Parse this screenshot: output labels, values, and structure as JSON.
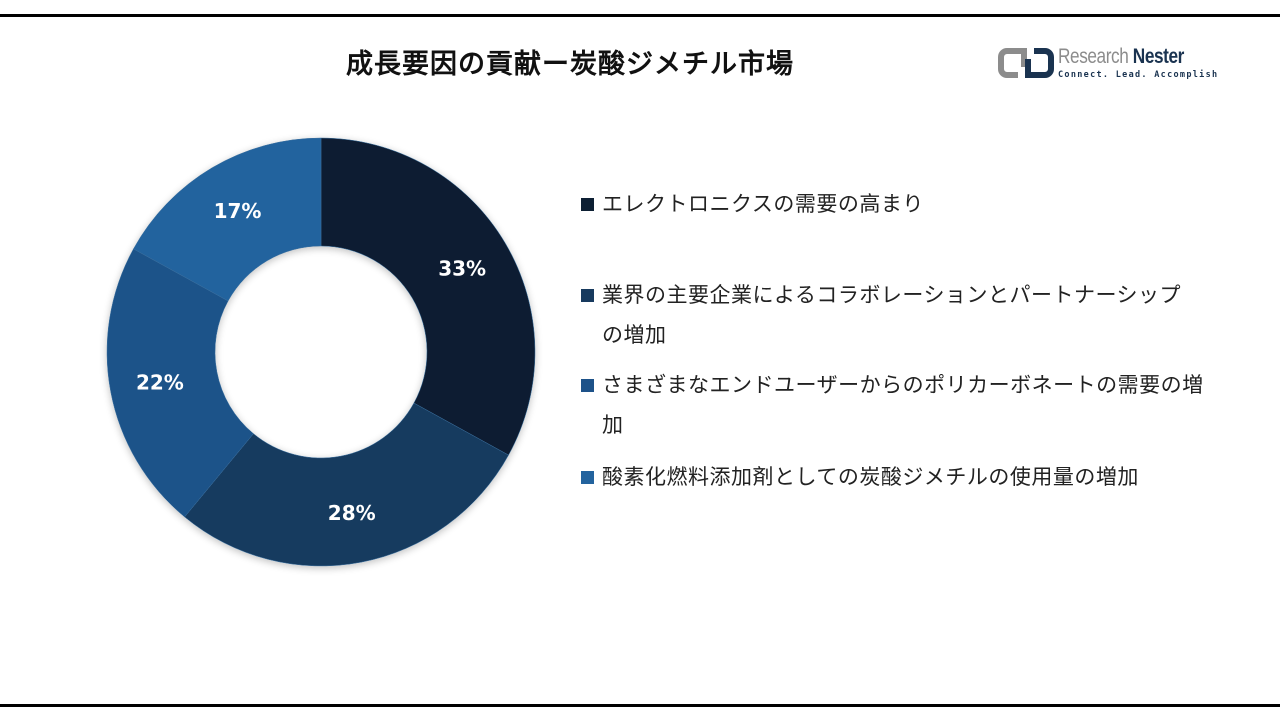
{
  "title": "成長要因の貢献ー炭酸ジメチル市場",
  "logo": {
    "name_part1": "Research",
    "name_part2": "Nester",
    "tagline": "Connect. Lead. Accomplish",
    "icon": "research-nester-logo-mark"
  },
  "colors": {
    "slice_1": "#0d1f33",
    "slice_2": "#173a5e",
    "slice_3": "#1d5289",
    "slice_4": "#23639e",
    "border": "#000000",
    "logo_gray": "#8c8c8c",
    "logo_navy": "#1a3350"
  },
  "legend": [
    {
      "label": "エレクトロニクスの需要の高まり",
      "color": "#0d1f33"
    },
    {
      "label": "業界の主要企業によるコラボレーションとパートナーシップの増加",
      "color": "#173a5e"
    },
    {
      "label": "さまざまなエンドユーザーからのポリカーボネートの需要の増加",
      "color": "#1d5289"
    },
    {
      "label": "酸素化燃料添加剤としての炭酸ジメチルの使用量の増加",
      "color": "#23639e"
    }
  ],
  "chart_data": {
    "type": "pie",
    "variant": "donut",
    "title": "成長要因の貢献ー炭酸ジメチル市場",
    "categories": [
      "エレクトロニクスの需要の高まり",
      "業界の主要企業によるコラボレーションとパートナーシップの増加",
      "さまざまなエンドユーザーからのポリカーボネートの需要の増加",
      "酸素化燃料添加剤としての炭酸ジメチルの使用量の増加"
    ],
    "values": [
      33,
      28,
      22,
      17
    ],
    "labels": [
      "33%",
      "28%",
      "22%",
      "17%"
    ],
    "colors": [
      "#0d1f33",
      "#173a5e",
      "#1d5289",
      "#23639e"
    ],
    "start_angle": "12 o'clock",
    "direction": "clockwise",
    "legend_position": "right",
    "unit": "%"
  }
}
